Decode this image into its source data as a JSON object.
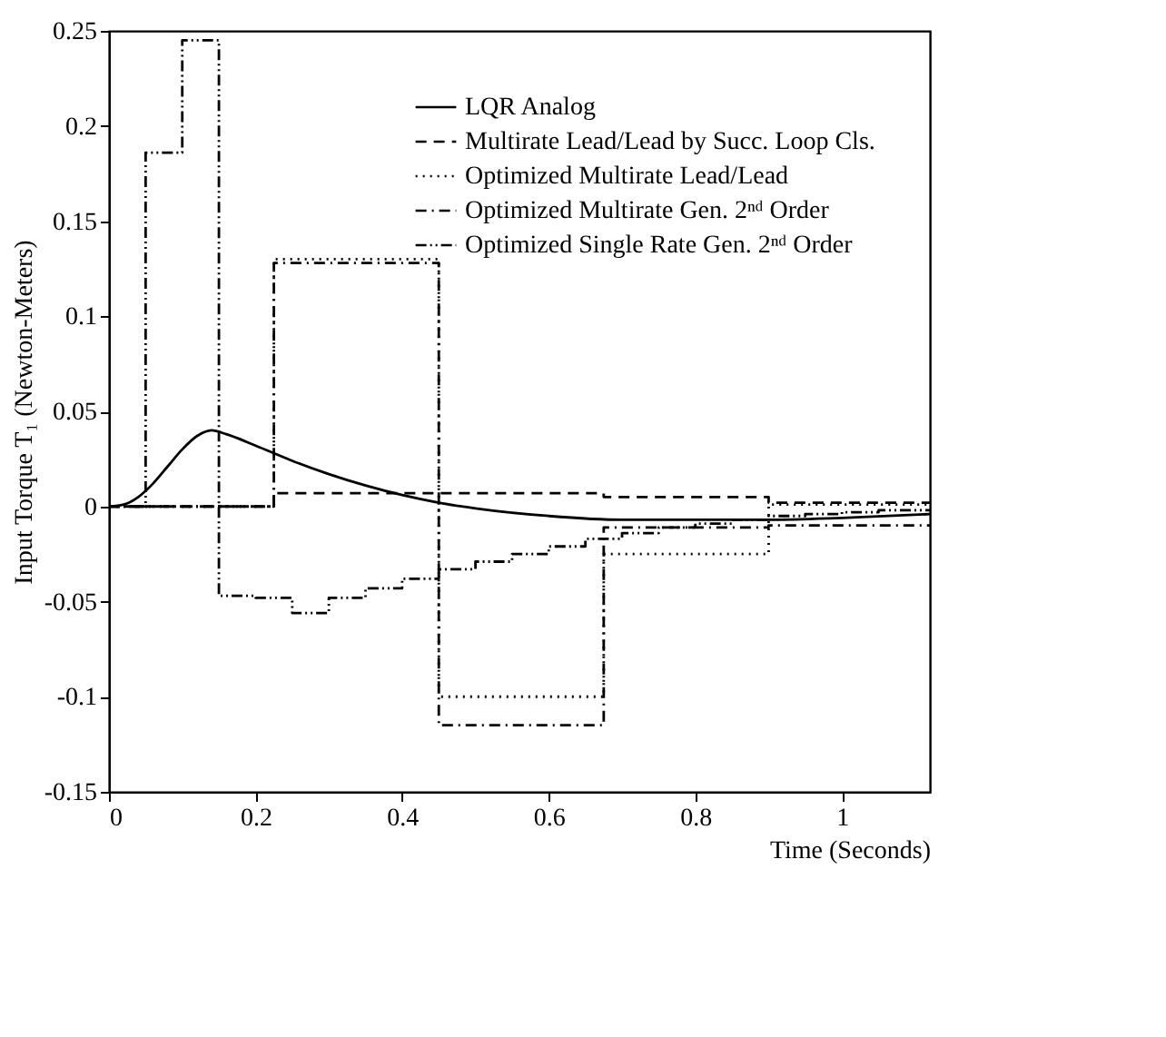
{
  "chart_data": {
    "type": "step",
    "xlabel": "Time (Seconds)",
    "ylabel": "Input Torque T₁  (Newton-Meters)",
    "xlim": [
      0,
      1.12
    ],
    "xticks": [
      0,
      0.2,
      0.4,
      0.6,
      0.8,
      1
    ],
    "ylim": [
      -0.15,
      0.25
    ],
    "yticks": [
      -0.15,
      -0.1,
      -0.05,
      0,
      0.05,
      0.1,
      0.15,
      0.2,
      0.25
    ],
    "grid": false,
    "legend": "top right",
    "marker": "none",
    "series": [
      {
        "name": "LQR Analog",
        "type": "line",
        "color": "#000000",
        "line_style": "solid",
        "x": [
          0,
          0.02,
          0.04,
          0.06,
          0.08,
          0.1,
          0.12,
          0.14,
          0.16,
          0.2,
          0.25,
          0.3,
          0.35,
          0.4,
          0.45,
          0.5,
          0.6,
          0.7,
          0.8,
          0.9,
          1.0,
          1.12
        ],
        "values": [
          0,
          0.001,
          0.005,
          0.012,
          0.021,
          0.03,
          0.037,
          0.04,
          0.038,
          0.032,
          0.024,
          0.017,
          0.011,
          0.006,
          0.002,
          -0.001,
          -0.005,
          -0.007,
          -0.007,
          -0.007,
          -0.006,
          -0.004
        ]
      },
      {
        "name": "Multirate Lead/Lead by Succ. Loop Cls.",
        "color": "#000000",
        "line_style": "dashed",
        "x": [
          0,
          0.225,
          0.675,
          0.9,
          1.12
        ],
        "values": [
          0,
          0.007,
          0.005,
          0.002,
          0.002
        ]
      },
      {
        "name": "Optimized Multirate Lead/Lead",
        "color": "#000000",
        "line_style": "dotted",
        "x": [
          0,
          0.225,
          0.45,
          0.675,
          0.9,
          1.12
        ],
        "values": [
          0,
          0.13,
          -0.1,
          -0.025,
          0.001,
          0.001
        ]
      },
      {
        "name": "Optimized Multirate Gen. 2ⁿᵈ Order",
        "color": "#000000",
        "line_style": "dashdot",
        "x": [
          0,
          0.225,
          0.45,
          0.675,
          0.9,
          1.12
        ],
        "values": [
          0,
          0.128,
          -0.115,
          -0.011,
          -0.01,
          -0.01
        ]
      },
      {
        "name": "Optimized Single Rate Gen. 2ⁿᵈ Order",
        "color": "#000000",
        "line_style": "dashdotdot",
        "x": [
          0,
          0.05,
          0.1,
          0.15,
          0.2,
          0.25,
          0.3,
          0.35,
          0.4,
          0.45,
          0.5,
          0.55,
          0.6,
          0.65,
          0.7,
          0.75,
          0.8,
          0.85,
          0.9,
          0.95,
          1.0,
          1.05,
          1.12
        ],
        "values": [
          0,
          0.186,
          0.245,
          -0.047,
          -0.048,
          -0.056,
          -0.048,
          -0.043,
          -0.038,
          -0.033,
          -0.029,
          -0.025,
          -0.021,
          -0.017,
          -0.014,
          -0.011,
          -0.009,
          -0.007,
          -0.005,
          -0.004,
          -0.003,
          -0.002,
          -0.002
        ]
      }
    ]
  }
}
